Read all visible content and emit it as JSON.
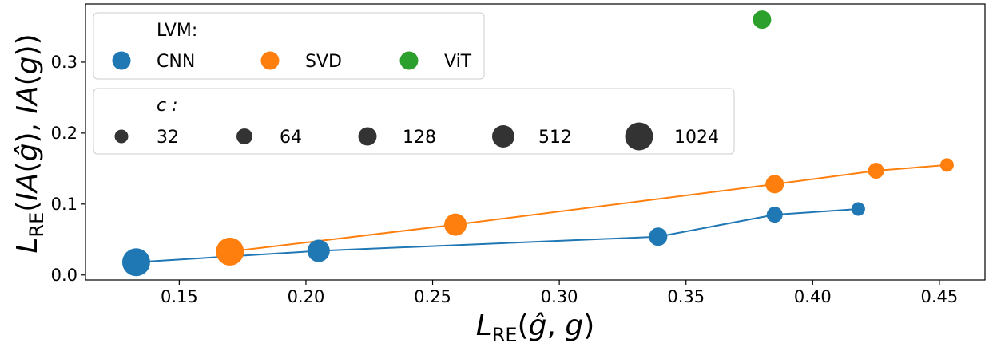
{
  "chart_data": {
    "type": "scatter",
    "xlabel": "L_RE(ĝ, g)",
    "ylabel": "L_RE(IA(ĝ), IA(g))",
    "xlim": [
      0.113,
      0.468
    ],
    "ylim": [
      -0.007,
      0.382
    ],
    "xticks": [
      "0.15",
      "0.20",
      "0.25",
      "0.30",
      "0.35",
      "0.40",
      "0.45"
    ],
    "yticks": [
      "0.0",
      "0.1",
      "0.2",
      "0.3"
    ],
    "grid": false,
    "series": [
      {
        "name": "CNN",
        "color": "#1f77b4",
        "connected": true,
        "points": [
          {
            "x": 0.133,
            "y": 0.018,
            "c": 1024
          },
          {
            "x": 0.205,
            "y": 0.034,
            "c": 512
          },
          {
            "x": 0.339,
            "y": 0.054,
            "c": 128
          },
          {
            "x": 0.385,
            "y": 0.085,
            "c": 64
          },
          {
            "x": 0.418,
            "y": 0.093,
            "c": 32
          }
        ]
      },
      {
        "name": "SVD",
        "color": "#ff7f0e",
        "connected": true,
        "points": [
          {
            "x": 0.17,
            "y": 0.033,
            "c": 1024
          },
          {
            "x": 0.259,
            "y": 0.071,
            "c": 512
          },
          {
            "x": 0.385,
            "y": 0.128,
            "c": 128
          },
          {
            "x": 0.425,
            "y": 0.147,
            "c": 64
          },
          {
            "x": 0.453,
            "y": 0.155,
            "c": 32
          }
        ]
      },
      {
        "name": "ViT",
        "color": "#2ca02c",
        "connected": false,
        "points": [
          {
            "x": 0.38,
            "y": 0.36,
            "c": 128
          }
        ]
      }
    ],
    "legend_lvm": {
      "title": "LVM:",
      "placement": "top-left",
      "entries": [
        "CNN",
        "SVD",
        "ViT"
      ]
    },
    "legend_c": {
      "title": "c :",
      "placement": "upper-left",
      "entries": [
        "32",
        "64",
        "128",
        "512",
        "1024"
      ],
      "marker_color": "#333333"
    }
  }
}
